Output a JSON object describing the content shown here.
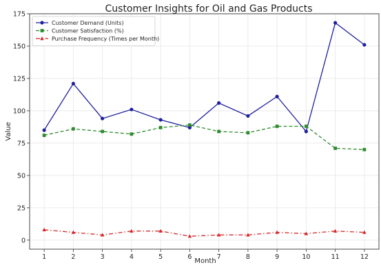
{
  "chart_data": {
    "type": "line",
    "title": "Customer Insights for Oil and Gas Products",
    "xlabel": "Month",
    "ylabel": "Value",
    "x": [
      1,
      2,
      3,
      4,
      5,
      6,
      7,
      8,
      9,
      10,
      11,
      12
    ],
    "x_ticks": [
      "1",
      "2",
      "3",
      "4",
      "5",
      "6",
      "7",
      "8",
      "9",
      "10",
      "11",
      "12"
    ],
    "ylim": [
      -7,
      175
    ],
    "y_ticks": [
      "0",
      "25",
      "50",
      "75",
      "100",
      "125",
      "150",
      "175"
    ],
    "grid": true,
    "legend_position": "top-left",
    "series": [
      {
        "name": "Customer Demand (Units)",
        "color": "#1f1f9e",
        "line_style": "solid",
        "marker": "circle",
        "values": [
          85,
          121,
          94,
          101,
          93,
          87,
          106,
          96,
          111,
          84,
          168,
          151
        ]
      },
      {
        "name": "Customer Satisfaction (%)",
        "color": "#2e8b2e",
        "line_style": "dashed",
        "marker": "square",
        "values": [
          81,
          86,
          84,
          82,
          87,
          89,
          84,
          83,
          88,
          88,
          71,
          70
        ]
      },
      {
        "name": "Purchase Frequency (Times per Month)",
        "color": "#d62728",
        "line_style": "dashdot",
        "marker": "triangle",
        "values": [
          8,
          6,
          4,
          7,
          7,
          3,
          4,
          4,
          6,
          5,
          7,
          6
        ]
      }
    ]
  }
}
